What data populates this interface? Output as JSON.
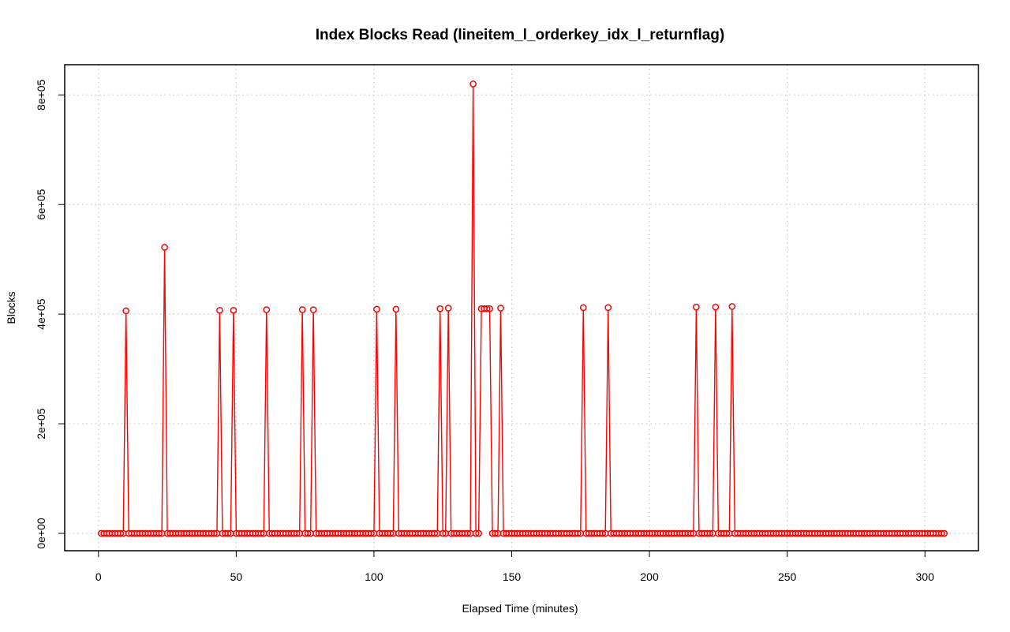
{
  "chart_data": {
    "type": "line",
    "title": "Index Blocks Read (lineitem_l_orderkey_idx_l_returnflag)",
    "xlabel": "Elapsed Time (minutes)",
    "ylabel": "Blocks",
    "xlim": [
      0,
      310
    ],
    "ylim": [
      0,
      820000
    ],
    "x_ticks": [
      0,
      50,
      100,
      150,
      200,
      250,
      300
    ],
    "x_tick_labels": [
      "0",
      "50",
      "100",
      "150",
      "200",
      "250",
      "300"
    ],
    "y_ticks": [
      0,
      200000,
      400000,
      600000,
      800000
    ],
    "y_tick_labels": [
      "0e+00",
      "2e+05",
      "4e+05",
      "6e+05",
      "8e+05"
    ],
    "grid": true,
    "series_color": "#ff0000",
    "marker": "open-circle",
    "x_range": [
      1,
      307
    ],
    "baseline_value": 0,
    "peaks": [
      {
        "x": 10,
        "y": 406000
      },
      {
        "x": 24,
        "y": 522000
      },
      {
        "x": 44,
        "y": 407000
      },
      {
        "x": 49,
        "y": 407000
      },
      {
        "x": 61,
        "y": 408000
      },
      {
        "x": 74,
        "y": 408000
      },
      {
        "x": 78,
        "y": 408000
      },
      {
        "x": 101,
        "y": 409000
      },
      {
        "x": 108,
        "y": 409000
      },
      {
        "x": 124,
        "y": 410000
      },
      {
        "x": 127,
        "y": 411000
      },
      {
        "x": 136,
        "y": 820000
      },
      {
        "x": 139,
        "y": 410000
      },
      {
        "x": 140,
        "y": 410000
      },
      {
        "x": 141,
        "y": 410000
      },
      {
        "x": 142,
        "y": 410000
      },
      {
        "x": 146,
        "y": 411000
      },
      {
        "x": 176,
        "y": 412000
      },
      {
        "x": 185,
        "y": 412000
      },
      {
        "x": 217,
        "y": 413000
      },
      {
        "x": 224,
        "y": 413000
      },
      {
        "x": 230,
        "y": 414000
      }
    ]
  }
}
